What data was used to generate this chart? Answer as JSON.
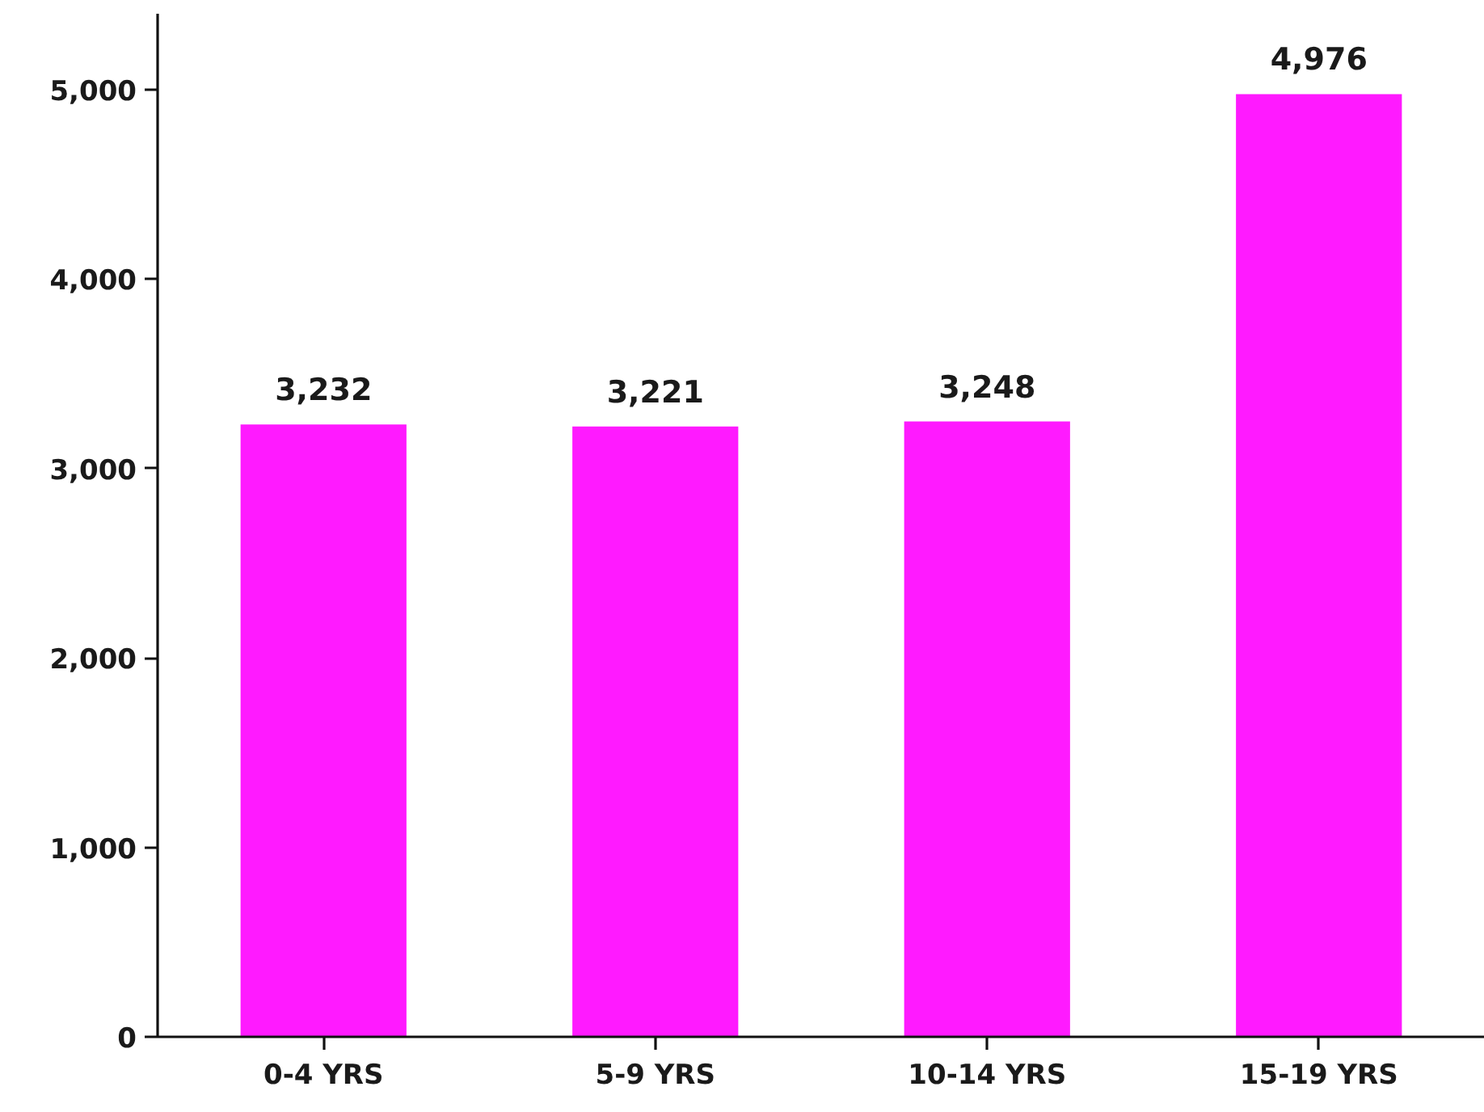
{
  "chart_data": {
    "type": "bar",
    "categories": [
      "0-4 YRS",
      "5-9 YRS",
      "10-14 YRS",
      "15-19 YRS"
    ],
    "values": [
      3232,
      3221,
      3248,
      4976
    ],
    "value_labels": [
      "3,232",
      "3,221",
      "3,248",
      "4,976"
    ],
    "color": "#ff1aff",
    "ylim": [
      0,
      5400
    ],
    "yticks": [
      0,
      {
        "value": 1000,
        "label": "1,000"
      },
      {
        "value": 2000,
        "label": "2,000"
      },
      {
        "value": 3000,
        "label": "3,000"
      },
      {
        "value": 4000,
        "label": "4,000"
      },
      {
        "value": 5000,
        "label": "5,000"
      }
    ],
    "grid": false
  }
}
